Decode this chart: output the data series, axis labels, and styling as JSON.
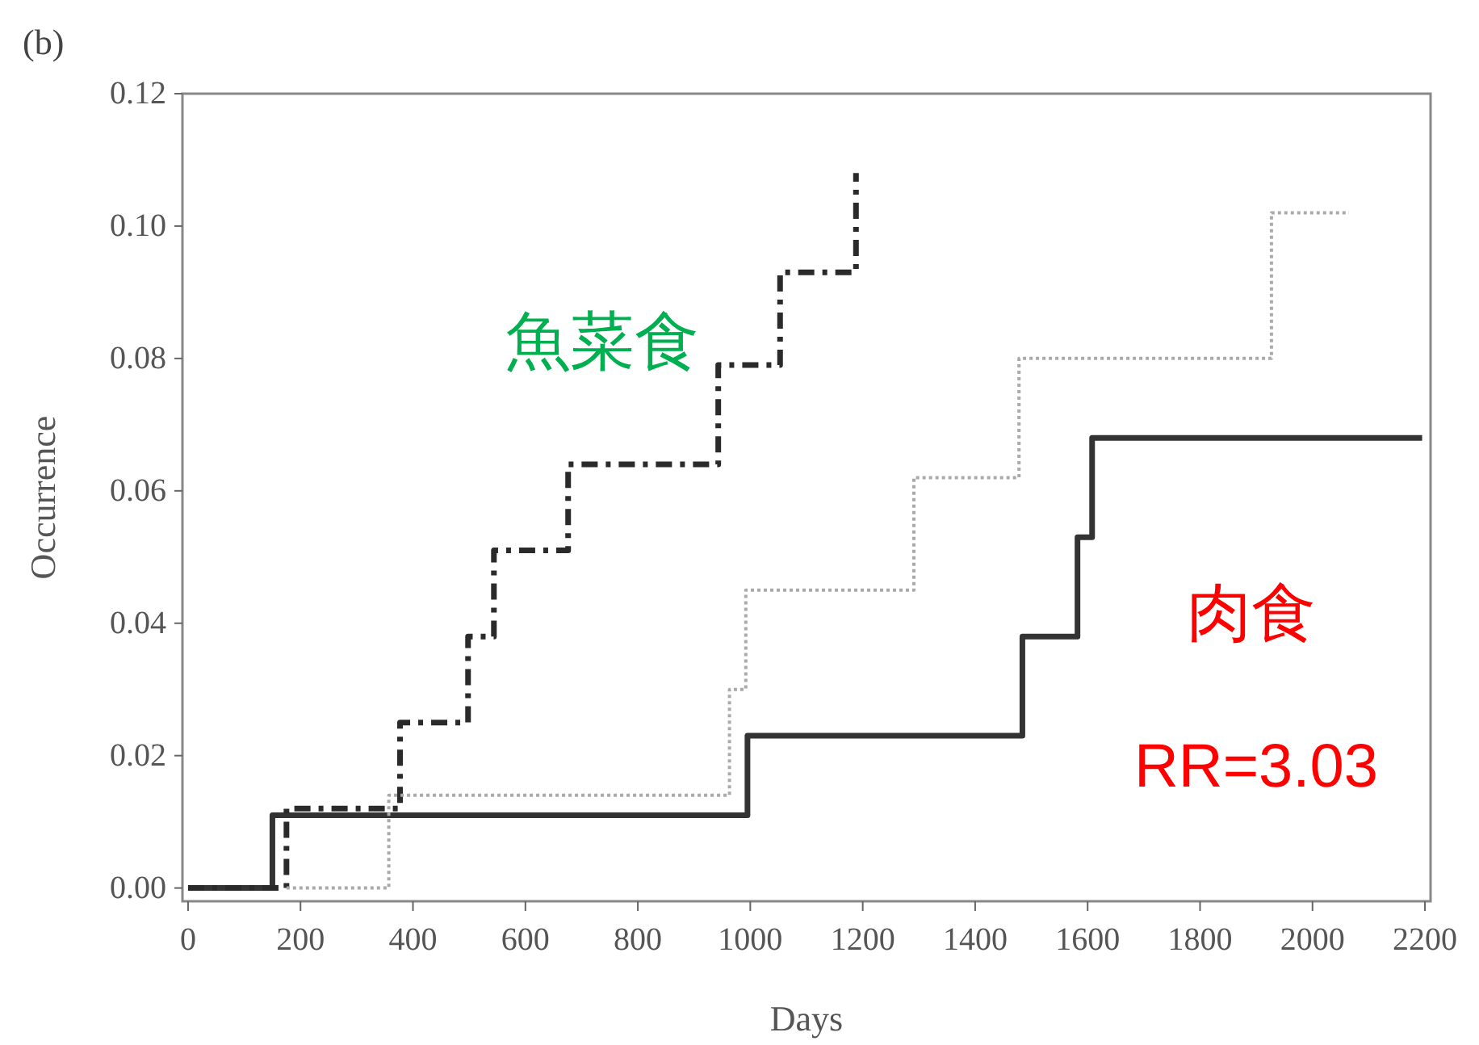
{
  "chart_data": {
    "type": "step",
    "xlabel": "Days",
    "ylabel": "Occurrence",
    "xlim": [
      -10,
      2210
    ],
    "ylim": [
      -0.002,
      0.12
    ],
    "xticks": [
      0,
      200,
      400,
      600,
      800,
      1000,
      1200,
      1400,
      1600,
      1800,
      2000,
      2200
    ],
    "yticks": [
      {
        "value": 0,
        "label": "0.00"
      },
      {
        "value": 0.02,
        "label": "0.02"
      },
      {
        "value": 0.04,
        "label": "0.04"
      },
      {
        "value": 0.06,
        "label": "0.06"
      },
      {
        "value": 0.08,
        "label": "0.08"
      },
      {
        "value": 0.1,
        "label": "0.10"
      },
      {
        "value": 0.12,
        "label": "0.12"
      }
    ],
    "grid": false,
    "series": [
      {
        "color": "#333333",
        "line_style": "solid",
        "x": [
          0,
          150,
          995,
          1484,
          1582,
          1608,
          2195
        ],
        "values": [
          0,
          0.011,
          0.023,
          0.038,
          0.053,
          0.068,
          0.068
        ]
      },
      {
        "color": "#2a2a2a",
        "line_style": "dashed",
        "x": [
          0,
          175,
          377,
          498,
          544,
          676,
          943,
          1053,
          1188
        ],
        "values": [
          0,
          0.012,
          0.025,
          0.038,
          0.051,
          0.064,
          0.079,
          0.093,
          0.108
        ]
      },
      {
        "color": "#aaaaaa",
        "line_style": "dotted",
        "x": [
          175,
          357,
          963,
          992,
          1291,
          1478,
          1927,
          2065
        ],
        "values": [
          0,
          0.014,
          0.03,
          0.045,
          0.062,
          0.08,
          0.102,
          0.102
        ]
      }
    ],
    "annotations": [
      "(b)",
      "魚菜食",
      "肉食",
      "RR=3.03"
    ]
  }
}
